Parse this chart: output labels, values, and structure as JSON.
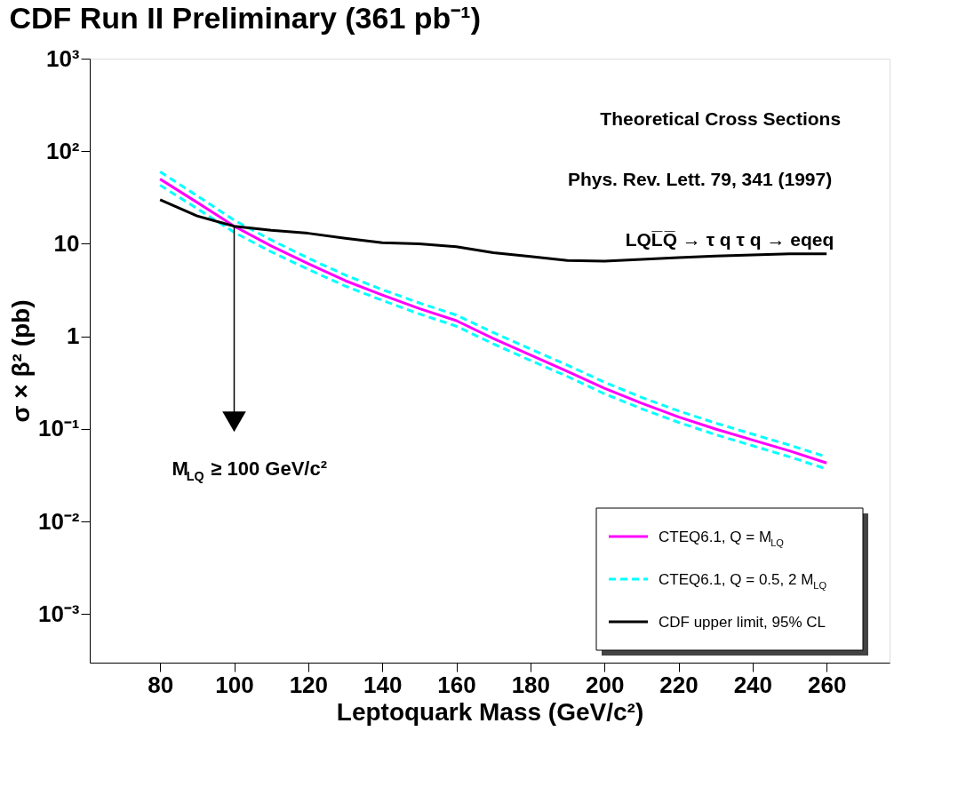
{
  "chart_data": {
    "type": "line",
    "title": "CDF Run II Preliminary (361 pb⁻¹)",
    "xlabel": "Leptoquark Mass (GeV/c²)",
    "ylabel": "σ × β² (pb)",
    "log": "y",
    "xlim": [
      61,
      277
    ],
    "ylim": [
      0.0003,
      1000
    ],
    "xticks": [
      80,
      100,
      120,
      140,
      160,
      180,
      200,
      220,
      240,
      260
    ],
    "yticks": [
      {
        "value": 1000,
        "label": "10³"
      },
      {
        "value": 100,
        "label": "10²"
      },
      10,
      1,
      {
        "value": 0.1,
        "label": "10⁻¹"
      },
      {
        "value": 0.01,
        "label": "10⁻²"
      },
      {
        "value": 0.001,
        "label": "10⁻³"
      }
    ],
    "grid": false,
    "legend": "bottom right",
    "x": [
      80,
      90,
      100,
      110,
      120,
      130,
      140,
      150,
      160,
      170,
      180,
      190,
      200,
      210,
      220,
      230,
      240,
      250,
      260
    ],
    "series": [
      {
        "name": "CTEQ6.1, Q = M$_{LQ}$",
        "color": "#ff00ff",
        "line_style": "solid",
        "values": [
          50,
          28,
          15.5,
          9.5,
          6.1,
          4.0,
          2.8,
          2.0,
          1.48,
          0.95,
          0.63,
          0.42,
          0.275,
          0.19,
          0.135,
          0.1,
          0.076,
          0.058,
          0.043
        ]
      },
      {
        "name": "CTEQ6.1, Q = 0.5, 2 M$_{LQ}$",
        "color": "#00ffff",
        "line_style": "dashed",
        "values": [
          60,
          33,
          18,
          11,
          7.0,
          4.6,
          3.2,
          2.3,
          1.7,
          1.1,
          0.73,
          0.49,
          0.32,
          0.22,
          0.157,
          0.116,
          0.088,
          0.067,
          0.05
        ]
      },
      {
        "color": "#00ffff",
        "line_style": "dashed",
        "values": [
          43,
          24,
          13.3,
          8.2,
          5.3,
          3.5,
          2.45,
          1.75,
          1.29,
          0.83,
          0.55,
          0.37,
          0.24,
          0.166,
          0.118,
          0.087,
          0.066,
          0.05,
          0.037
        ]
      },
      {
        "name": "CDF upper limit, 95% CL",
        "color": "#000000",
        "line_style": "solid",
        "values": [
          30,
          20,
          15.5,
          14,
          13,
          11.5,
          10.3,
          10,
          9.3,
          8,
          7.3,
          6.6,
          6.5,
          6.8,
          7.1,
          7.4,
          7.6,
          7.8,
          7.8
        ]
      }
    ],
    "annotations": [
      "Theoretical Cross Sections",
      "Phys. Rev. Lett. 79, 341 (1997)",
      "LQL̅Q̅ → τ q τ q → eqeq",
      {
        "text": "M$_{LQ}$ ≥ 100 GeV/c²",
        "x": 100,
        "y": 0.12
      }
    ]
  }
}
